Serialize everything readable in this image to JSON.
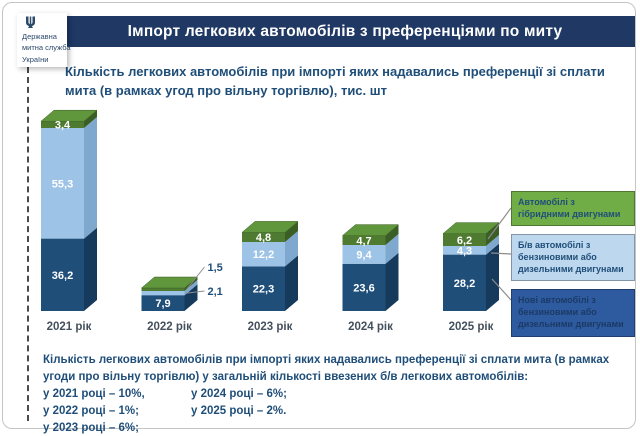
{
  "colors": {
    "header_bg": "#1f3864",
    "text_navy": "#1f4e79",
    "bar_dark_blue": "#1f4e79",
    "bar_dark_blue_side": "#163a5c",
    "bar_dark_blue_top": "#2a6da0",
    "bar_light_blue": "#9dc3e6",
    "bar_light_blue_side": "#7fa8cf",
    "bar_light_blue_top": "#b9d5ef",
    "bar_green": "#4e7b30",
    "bar_green_side": "#3b5e24",
    "bar_green_top": "#61973c",
    "legend_green": "#70ad47",
    "legend_light_blue": "#bdd7ee",
    "legend_dark_blue": "#2e5b9f",
    "connector_gray": "#8c8c8c"
  },
  "logo": {
    "icon": "trident-icon",
    "lines": [
      "Державна",
      "митна служба",
      "України"
    ]
  },
  "header": {
    "title": "Імпорт легкових автомобілів з преференціями по миту"
  },
  "subtitle": "Кількість легкових автомобілів при імпорті яких надавались преференції зі сплати мита (в рамках угод про вільну торгівлю), тис. шт",
  "chart_data": {
    "type": "bar",
    "subtype": "stacked-3d-column",
    "title": "Кількість легкових автомобілів при імпорті яких надавались преференції зі сплати мита (в рамках угод про вільну торгівлю), тис. шт",
    "categories": [
      "2021 рік",
      "2022 рік",
      "2023 рік",
      "2024 рік",
      "2025 рік"
    ],
    "series": [
      {
        "name": "Нові автомобілі з бензиновими або дизельними двигунами",
        "color_key": "bar_dark_blue",
        "values": [
          36.2,
          7.9,
          22.3,
          23.6,
          28.2
        ]
      },
      {
        "name": "Б/в автомобілі з бензиновими або дизельними двигунами",
        "color_key": "bar_light_blue",
        "values": [
          55.3,
          2.1,
          12.2,
          9.4,
          4.3
        ]
      },
      {
        "name": "Автомобілі з гібридними двигунами",
        "color_key": "bar_green",
        "values": [
          3.4,
          1.5,
          4.8,
          4.7,
          6.2
        ]
      }
    ],
    "value_labels": [
      [
        "36,2",
        "7,9",
        "22,3",
        "23,6",
        "28,2"
      ],
      [
        "55,3",
        "2,1",
        "12,2",
        "9,4",
        "4,3"
      ],
      [
        "3,4",
        "1,5",
        "4,8",
        "4,7",
        "6,2"
      ]
    ],
    "unit": "тис. шт",
    "xlabel": "",
    "ylabel": "",
    "grid": false,
    "legend_position": "right"
  },
  "legend": {
    "items": [
      {
        "label": "Автомобілі з гібридними двигунами",
        "color_key": "legend_green",
        "text_color": "#1f4e79"
      },
      {
        "label": "Б/в автомобілі з бензиновими або дизельними двигунами",
        "color_key": "legend_light_blue",
        "text_color": "#1f4e79"
      },
      {
        "label": "Нові автомобілі з бензиновими або дизельними двигунами",
        "color_key": "legend_dark_blue",
        "text_color": "#1b3a66"
      }
    ]
  },
  "footnote": {
    "intro": "Кількість легкових автомобілів при імпорті яких надавались преференції зі сплати мита (в рамках угоди про вільну торгівлю) у загальній кількості ввезених б/в легкових автомобілів:",
    "left_items": [
      "у 2021 році – 10%,",
      "у 2022 році – 1%;",
      "у 2023 році – 6%;"
    ],
    "right_items": [
      "у 2024 році – 6%;",
      "у 2025 році – 2%."
    ]
  }
}
